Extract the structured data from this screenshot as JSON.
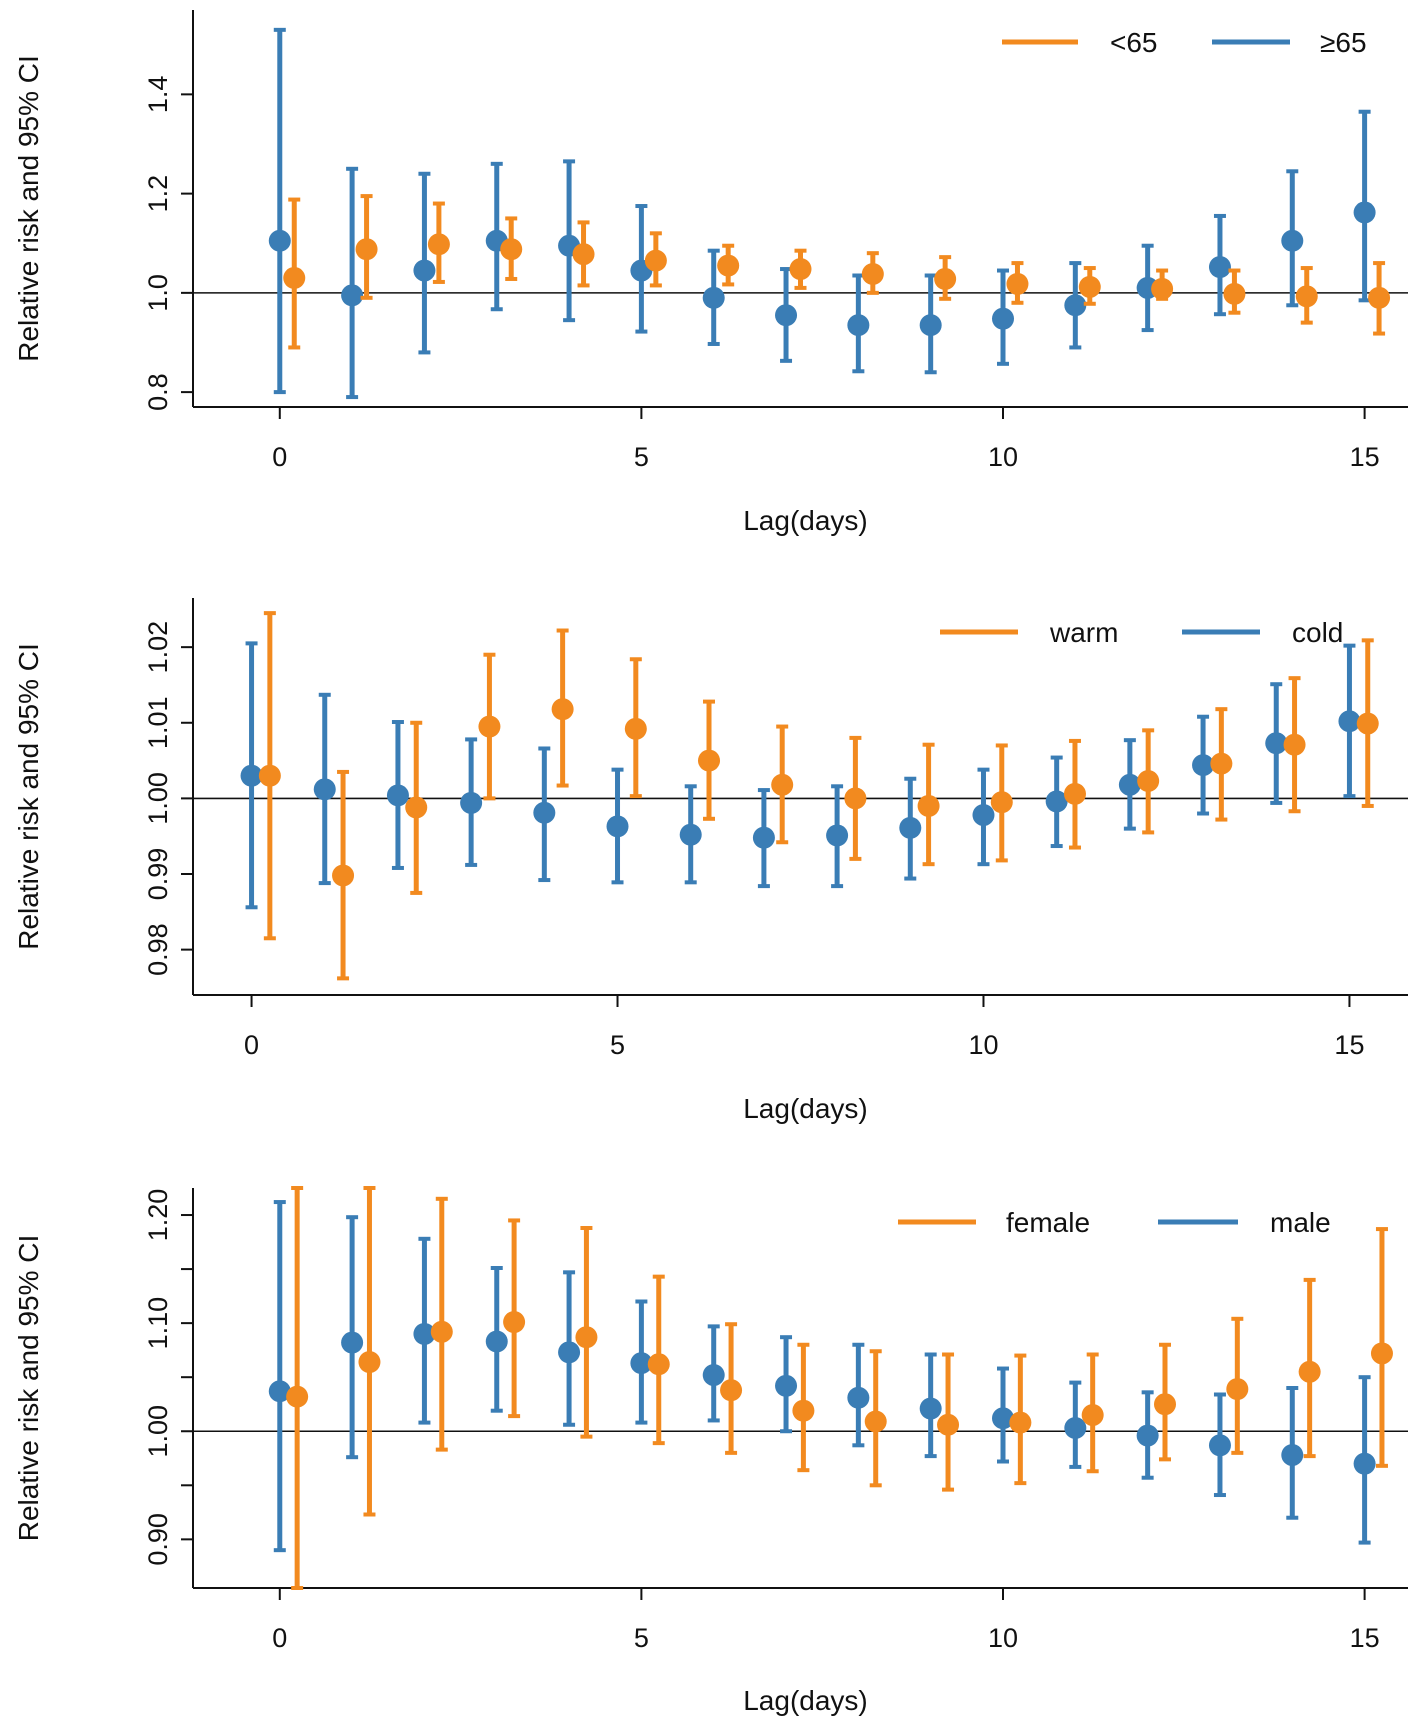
{
  "colors": {
    "orange": "#F28A1F",
    "blue": "#3A7DB5",
    "axis": "#111111"
  },
  "chart_data": [
    {
      "type": "errorbar",
      "xlabel": "Lag(days)",
      "ylabel": "Relative risk and 95% CI",
      "xlim": [
        -1.2,
        15.6
      ],
      "ylim": [
        0.77,
        1.57
      ],
      "xticks": [
        0,
        5,
        10,
        15
      ],
      "xtick_labels": [
        "0",
        "5",
        "10",
        "15"
      ],
      "yticks": [
        0.8,
        1.0,
        1.2,
        1.4
      ],
      "ytick_labels": [
        "0.8",
        "1.0",
        "1.2",
        "1.4"
      ],
      "minor_yticks": [],
      "reference_line": 1.0,
      "legend": [
        {
          "label": "<65",
          "color": "orange"
        },
        {
          "label": "≥65",
          "color": "blue"
        }
      ],
      "series": [
        {
          "name": "≥65",
          "color": "blue",
          "offset": 0,
          "x": [
            0,
            1,
            2,
            3,
            4,
            5,
            6,
            7,
            8,
            9,
            10,
            11,
            12,
            13,
            14,
            15
          ],
          "estimate": [
            1.105,
            0.995,
            1.045,
            1.105,
            1.095,
            1.045,
            0.99,
            0.955,
            0.935,
            0.935,
            0.948,
            0.975,
            1.01,
            1.052,
            1.105,
            1.162
          ],
          "lower": [
            0.8,
            0.79,
            0.88,
            0.967,
            0.945,
            0.922,
            0.897,
            0.863,
            0.842,
            0.84,
            0.857,
            0.89,
            0.925,
            0.957,
            0.975,
            0.985
          ],
          "upper": [
            1.53,
            1.25,
            1.24,
            1.26,
            1.265,
            1.175,
            1.085,
            1.048,
            1.035,
            1.035,
            1.045,
            1.06,
            1.095,
            1.155,
            1.245,
            1.365
          ]
        },
        {
          "name": "<65",
          "color": "orange",
          "offset": 0.2,
          "x": [
            0,
            1,
            2,
            3,
            4,
            5,
            6,
            7,
            8,
            9,
            10,
            11,
            12,
            13,
            14,
            15
          ],
          "estimate": [
            1.03,
            1.088,
            1.098,
            1.088,
            1.078,
            1.065,
            1.055,
            1.048,
            1.038,
            1.028,
            1.018,
            1.012,
            1.008,
            0.998,
            0.993,
            0.99
          ],
          "lower": [
            0.89,
            0.99,
            1.022,
            1.028,
            1.015,
            1.015,
            1.017,
            1.01,
            1.0,
            0.988,
            0.98,
            0.978,
            0.988,
            0.96,
            0.94,
            0.918
          ],
          "upper": [
            1.188,
            1.195,
            1.18,
            1.15,
            1.142,
            1.12,
            1.095,
            1.085,
            1.08,
            1.072,
            1.06,
            1.05,
            1.045,
            1.045,
            1.05,
            1.06
          ]
        }
      ]
    },
    {
      "type": "errorbar",
      "xlabel": "Lag(days)",
      "ylabel": "Relative risk and 95% CI",
      "xlim": [
        -0.8,
        15.8
      ],
      "ylim": [
        0.974,
        1.0265
      ],
      "xticks": [
        0,
        5,
        10,
        15
      ],
      "xtick_labels": [
        "0",
        "5",
        "10",
        "15"
      ],
      "yticks": [
        0.98,
        0.99,
        1.0,
        1.01,
        1.02
      ],
      "ytick_labels": [
        "0.98",
        "0.99",
        "1.00",
        "1.01",
        "1.02"
      ],
      "minor_yticks": [],
      "reference_line": 1.0,
      "legend": [
        {
          "label": "warm",
          "color": "orange"
        },
        {
          "label": "cold",
          "color": "blue"
        }
      ],
      "series": [
        {
          "name": "cold",
          "color": "blue",
          "offset": 0,
          "x": [
            0,
            1,
            2,
            3,
            4,
            5,
            6,
            7,
            8,
            9,
            10,
            11,
            12,
            13,
            14,
            15
          ],
          "estimate": [
            1.003,
            1.0012,
            1.0004,
            0.9994,
            0.9981,
            0.9963,
            0.9952,
            0.9948,
            0.9951,
            0.9961,
            0.9978,
            0.9996,
            1.0018,
            1.0044,
            1.0073,
            1.0102
          ],
          "lower": [
            0.9856,
            0.9888,
            0.9908,
            0.9912,
            0.9892,
            0.9889,
            0.9889,
            0.9884,
            0.9884,
            0.9894,
            0.9913,
            0.9937,
            0.996,
            0.998,
            0.9994,
            1.0003
          ],
          "upper": [
            1.0205,
            1.0137,
            1.0101,
            1.0078,
            1.0066,
            1.0038,
            1.0016,
            1.0011,
            1.0016,
            1.0026,
            1.0038,
            1.0054,
            1.0077,
            1.0108,
            1.0151,
            1.0202
          ]
        },
        {
          "name": "warm",
          "color": "orange",
          "offset": 0.25,
          "x": [
            0,
            1,
            2,
            3,
            4,
            5,
            6,
            7,
            8,
            9,
            10,
            11,
            12,
            13,
            14,
            15
          ],
          "estimate": [
            1.003,
            0.9898,
            0.9988,
            1.0095,
            1.0118,
            1.0092,
            1.005,
            1.0018,
            1.0,
            0.999,
            0.9995,
            1.0006,
            1.0023,
            1.0046,
            1.0071,
            1.0099
          ],
          "lower": [
            0.9815,
            0.9762,
            0.9875,
            1.0,
            1.0017,
            1.0003,
            0.9973,
            0.9942,
            0.992,
            0.9913,
            0.9918,
            0.9935,
            0.9955,
            0.9972,
            0.9983,
            0.999
          ],
          "upper": [
            1.0245,
            1.0035,
            1.01,
            1.019,
            1.0222,
            1.0184,
            1.0128,
            1.0095,
            1.008,
            1.0071,
            1.007,
            1.0076,
            1.009,
            1.0118,
            1.0159,
            1.0209
          ]
        }
      ]
    },
    {
      "type": "errorbar",
      "xlabel": "Lag(days)",
      "ylabel": "Relative risk and 95% CI",
      "xlim": [
        -1.2,
        15.6
      ],
      "ylim": [
        0.855,
        1.225
      ],
      "xticks": [
        0,
        5,
        10,
        15
      ],
      "xtick_labels": [
        "0",
        "5",
        "10",
        "15"
      ],
      "yticks": [
        0.9,
        1.0,
        1.1,
        1.2
      ],
      "ytick_labels": [
        "0.90",
        "1.00",
        "1.10",
        "1.20"
      ],
      "minor_yticks": [
        0.95,
        1.05,
        1.15
      ],
      "reference_line": 1.0,
      "legend": [
        {
          "label": "female",
          "color": "orange"
        },
        {
          "label": "male",
          "color": "blue"
        }
      ],
      "series": [
        {
          "name": "male",
          "color": "blue",
          "offset": 0,
          "x": [
            0,
            1,
            2,
            3,
            4,
            5,
            6,
            7,
            8,
            9,
            10,
            11,
            12,
            13,
            14,
            15
          ],
          "estimate": [
            1.037,
            1.082,
            1.09,
            1.083,
            1.073,
            1.063,
            1.052,
            1.042,
            1.031,
            1.021,
            1.012,
            1.003,
            0.996,
            0.987,
            0.978,
            0.97
          ],
          "lower": [
            0.89,
            0.976,
            1.008,
            1.019,
            1.006,
            1.008,
            1.01,
            1.0,
            0.987,
            0.977,
            0.972,
            0.967,
            0.957,
            0.941,
            0.92,
            0.897
          ],
          "upper": [
            1.212,
            1.198,
            1.178,
            1.151,
            1.147,
            1.12,
            1.097,
            1.087,
            1.08,
            1.071,
            1.058,
            1.045,
            1.036,
            1.034,
            1.04,
            1.05
          ]
        },
        {
          "name": "female",
          "color": "orange",
          "offset": 0.24,
          "x": [
            0,
            1,
            2,
            3,
            4,
            5,
            6,
            7,
            8,
            9,
            10,
            11,
            12,
            13,
            14,
            15
          ],
          "estimate": [
            1.032,
            1.064,
            1.092,
            1.101,
            1.087,
            1.062,
            1.038,
            1.019,
            1.009,
            1.006,
            1.008,
            1.015,
            1.025,
            1.039,
            1.055,
            1.072
          ],
          "lower": [
            0.855,
            0.923,
            0.983,
            1.014,
            0.995,
            0.989,
            0.98,
            0.964,
            0.95,
            0.946,
            0.952,
            0.963,
            0.974,
            0.98,
            0.977,
            0.968
          ],
          "upper": [
            1.225,
            1.225,
            1.215,
            1.195,
            1.188,
            1.143,
            1.099,
            1.08,
            1.074,
            1.071,
            1.07,
            1.071,
            1.08,
            1.104,
            1.14,
            1.187
          ]
        }
      ]
    }
  ]
}
